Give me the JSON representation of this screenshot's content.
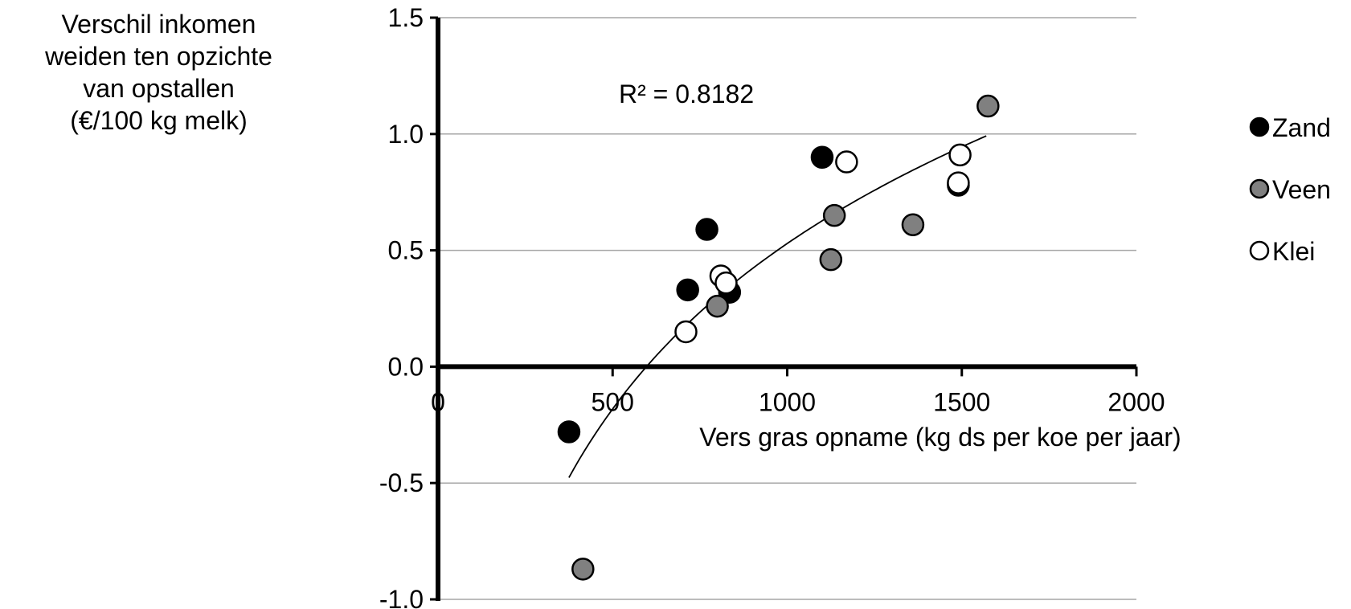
{
  "chart_data": {
    "type": "scatter",
    "title": "",
    "ylabel_lines": [
      "Verschil inkomen",
      "weiden ten opzichte",
      "van opstallen",
      "(€/100 kg melk)"
    ],
    "xlabel": "Vers gras opname  (kg ds per koe per jaar)",
    "xlim": [
      0,
      2000
    ],
    "ylim": [
      -1.0,
      1.5
    ],
    "xticks": [
      0,
      500,
      1000,
      1500,
      2000
    ],
    "xtick_labels": [
      "0",
      "500",
      "1000",
      "1500",
      "2000"
    ],
    "yticks": [
      1.5,
      1.0,
      0.5,
      0.0,
      -0.5,
      -1.0
    ],
    "ytick_labels": [
      "1.5",
      "1.0",
      "0.5",
      "0.0",
      "-0.5",
      "-1.0"
    ],
    "grid": "horizontal",
    "legend_position": "right",
    "r2_label": "R² = 0.8182",
    "series": [
      {
        "name": "Zand",
        "color": "#000000",
        "stroke": "#000000",
        "points": [
          {
            "x": 375,
            "y": -0.28
          },
          {
            "x": 715,
            "y": 0.33
          },
          {
            "x": 770,
            "y": 0.59
          },
          {
            "x": 835,
            "y": 0.32
          },
          {
            "x": 1100,
            "y": 0.9
          },
          {
            "x": 1490,
            "y": 0.78
          }
        ]
      },
      {
        "name": "Veen",
        "color": "#808080",
        "stroke": "#000000",
        "points": [
          {
            "x": 415,
            "y": -0.87
          },
          {
            "x": 800,
            "y": 0.26
          },
          {
            "x": 1125,
            "y": 0.46
          },
          {
            "x": 1135,
            "y": 0.65
          },
          {
            "x": 1360,
            "y": 0.61
          },
          {
            "x": 1575,
            "y": 1.12
          }
        ]
      },
      {
        "name": "Klei",
        "color": "#ffffff",
        "stroke": "#000000",
        "points": [
          {
            "x": 710,
            "y": 0.15
          },
          {
            "x": 810,
            "y": 0.39
          },
          {
            "x": 825,
            "y": 0.36
          },
          {
            "x": 1170,
            "y": 0.88
          },
          {
            "x": 1490,
            "y": 0.79
          },
          {
            "x": 1495,
            "y": 0.91
          }
        ]
      }
    ],
    "trendline": {
      "type": "logarithmic",
      "x_range": [
        375,
        1570
      ],
      "points": [
        {
          "x": 375,
          "y": -0.47
        },
        {
          "x": 600,
          "y": 0.0
        },
        {
          "x": 1000,
          "y": 0.52
        },
        {
          "x": 1570,
          "y": 1.0
        }
      ]
    }
  }
}
